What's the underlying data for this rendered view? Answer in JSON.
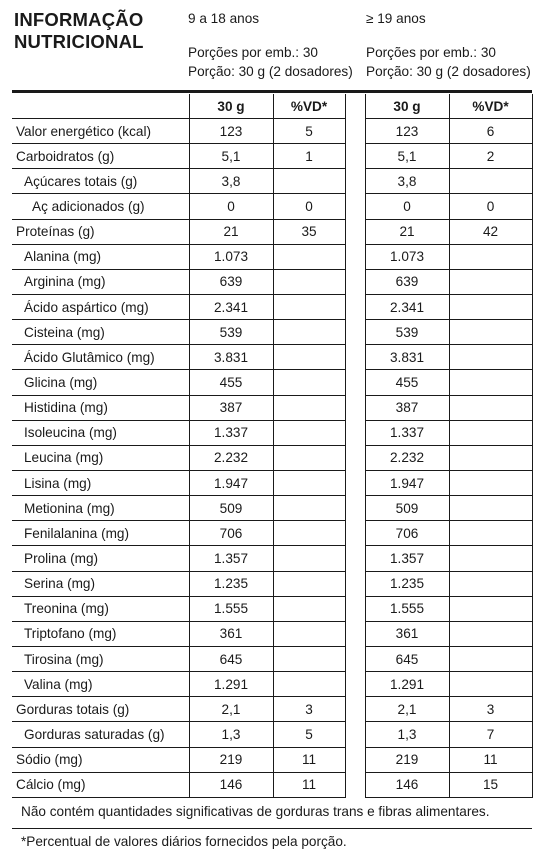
{
  "title_line1": "INFORMAÇÃO",
  "title_line2": "NUTRICIONAL",
  "groups": [
    {
      "age": "9 a 18 anos",
      "portions": "Porções por emb.: 30",
      "portion": "Porção: 30 g (2 dosadores)"
    },
    {
      "age": "≥ 19 anos",
      "portions": "Porções por emb.: 30",
      "portion": "Porção: 30 g (2 dosadores)"
    }
  ],
  "col_headers": {
    "amount": "30 g",
    "vd": "%VD*"
  },
  "rows": [
    {
      "label": "Valor energético (kcal)",
      "indent": 0,
      "a1": "123",
      "vd1": "5",
      "a2": "123",
      "vd2": "6"
    },
    {
      "label": "Carboidratos (g)",
      "indent": 0,
      "a1": "5,1",
      "vd1": "1",
      "a2": "5,1",
      "vd2": "2"
    },
    {
      "label": "Açúcares totais (g)",
      "indent": 1,
      "a1": "3,8",
      "vd1": "",
      "a2": "3,8",
      "vd2": ""
    },
    {
      "label": "Aç adicionados (g)",
      "indent": 2,
      "a1": "0",
      "vd1": "0",
      "a2": "0",
      "vd2": "0"
    },
    {
      "label": "Proteínas (g)",
      "indent": 0,
      "a1": "21",
      "vd1": "35",
      "a2": "21",
      "vd2": "42"
    },
    {
      "label": "Alanina (mg)",
      "indent": 1,
      "a1": "1.073",
      "vd1": "",
      "a2": "1.073",
      "vd2": ""
    },
    {
      "label": "Arginina (mg)",
      "indent": 1,
      "a1": "639",
      "vd1": "",
      "a2": "639",
      "vd2": ""
    },
    {
      "label": "Ácido aspártico (mg)",
      "indent": 1,
      "a1": "2.341",
      "vd1": "",
      "a2": "2.341",
      "vd2": ""
    },
    {
      "label": "Cisteina (mg)",
      "indent": 1,
      "a1": "539",
      "vd1": "",
      "a2": "539",
      "vd2": ""
    },
    {
      "label": "Ácido Glutâmico (mg)",
      "indent": 1,
      "a1": "3.831",
      "vd1": "",
      "a2": "3.831",
      "vd2": ""
    },
    {
      "label": "Glicina (mg)",
      "indent": 1,
      "a1": "455",
      "vd1": "",
      "a2": "455",
      "vd2": ""
    },
    {
      "label": "Histidina (mg)",
      "indent": 1,
      "a1": "387",
      "vd1": "",
      "a2": "387",
      "vd2": ""
    },
    {
      "label": "Isoleucina (mg)",
      "indent": 1,
      "a1": "1.337",
      "vd1": "",
      "a2": "1.337",
      "vd2": ""
    },
    {
      "label": "Leucina (mg)",
      "indent": 1,
      "a1": "2.232",
      "vd1": "",
      "a2": "2.232",
      "vd2": ""
    },
    {
      "label": "Lisina (mg)",
      "indent": 1,
      "a1": "1.947",
      "vd1": "",
      "a2": "1.947",
      "vd2": ""
    },
    {
      "label": "Metionina (mg)",
      "indent": 1,
      "a1": "509",
      "vd1": "",
      "a2": "509",
      "vd2": ""
    },
    {
      "label": "Fenilalanina (mg)",
      "indent": 1,
      "a1": "706",
      "vd1": "",
      "a2": "706",
      "vd2": ""
    },
    {
      "label": "Prolina (mg)",
      "indent": 1,
      "a1": "1.357",
      "vd1": "",
      "a2": "1.357",
      "vd2": ""
    },
    {
      "label": "Serina (mg)",
      "indent": 1,
      "a1": "1.235",
      "vd1": "",
      "a2": "1.235",
      "vd2": ""
    },
    {
      "label": "Treonina (mg)",
      "indent": 1,
      "a1": "1.555",
      "vd1": "",
      "a2": "1.555",
      "vd2": ""
    },
    {
      "label": "Triptofano (mg)",
      "indent": 1,
      "a1": "361",
      "vd1": "",
      "a2": "361",
      "vd2": ""
    },
    {
      "label": "Tirosina (mg)",
      "indent": 1,
      "a1": "645",
      "vd1": "",
      "a2": "645",
      "vd2": ""
    },
    {
      "label": "Valina (mg)",
      "indent": 1,
      "a1": "1.291",
      "vd1": "",
      "a2": "1.291",
      "vd2": ""
    },
    {
      "label": "Gorduras totais (g)",
      "indent": 0,
      "a1": "2,1",
      "vd1": "3",
      "a2": "2,1",
      "vd2": "3"
    },
    {
      "label": "Gorduras saturadas (g)",
      "indent": 1,
      "a1": "1,3",
      "vd1": "5",
      "a2": "1,3",
      "vd2": "7"
    },
    {
      "label": "Sódio (mg)",
      "indent": 0,
      "a1": "219",
      "vd1": "11",
      "a2": "219",
      "vd2": "11"
    },
    {
      "label": "Cálcio (mg)",
      "indent": 0,
      "a1": "146",
      "vd1": "11",
      "a2": "146",
      "vd2": "15"
    }
  ],
  "footnote_1": "Não contém quantidades significativas de gorduras trans e fibras alimentares.",
  "footnote_2": "*Percentual de valores diários fornecidos pela porção."
}
